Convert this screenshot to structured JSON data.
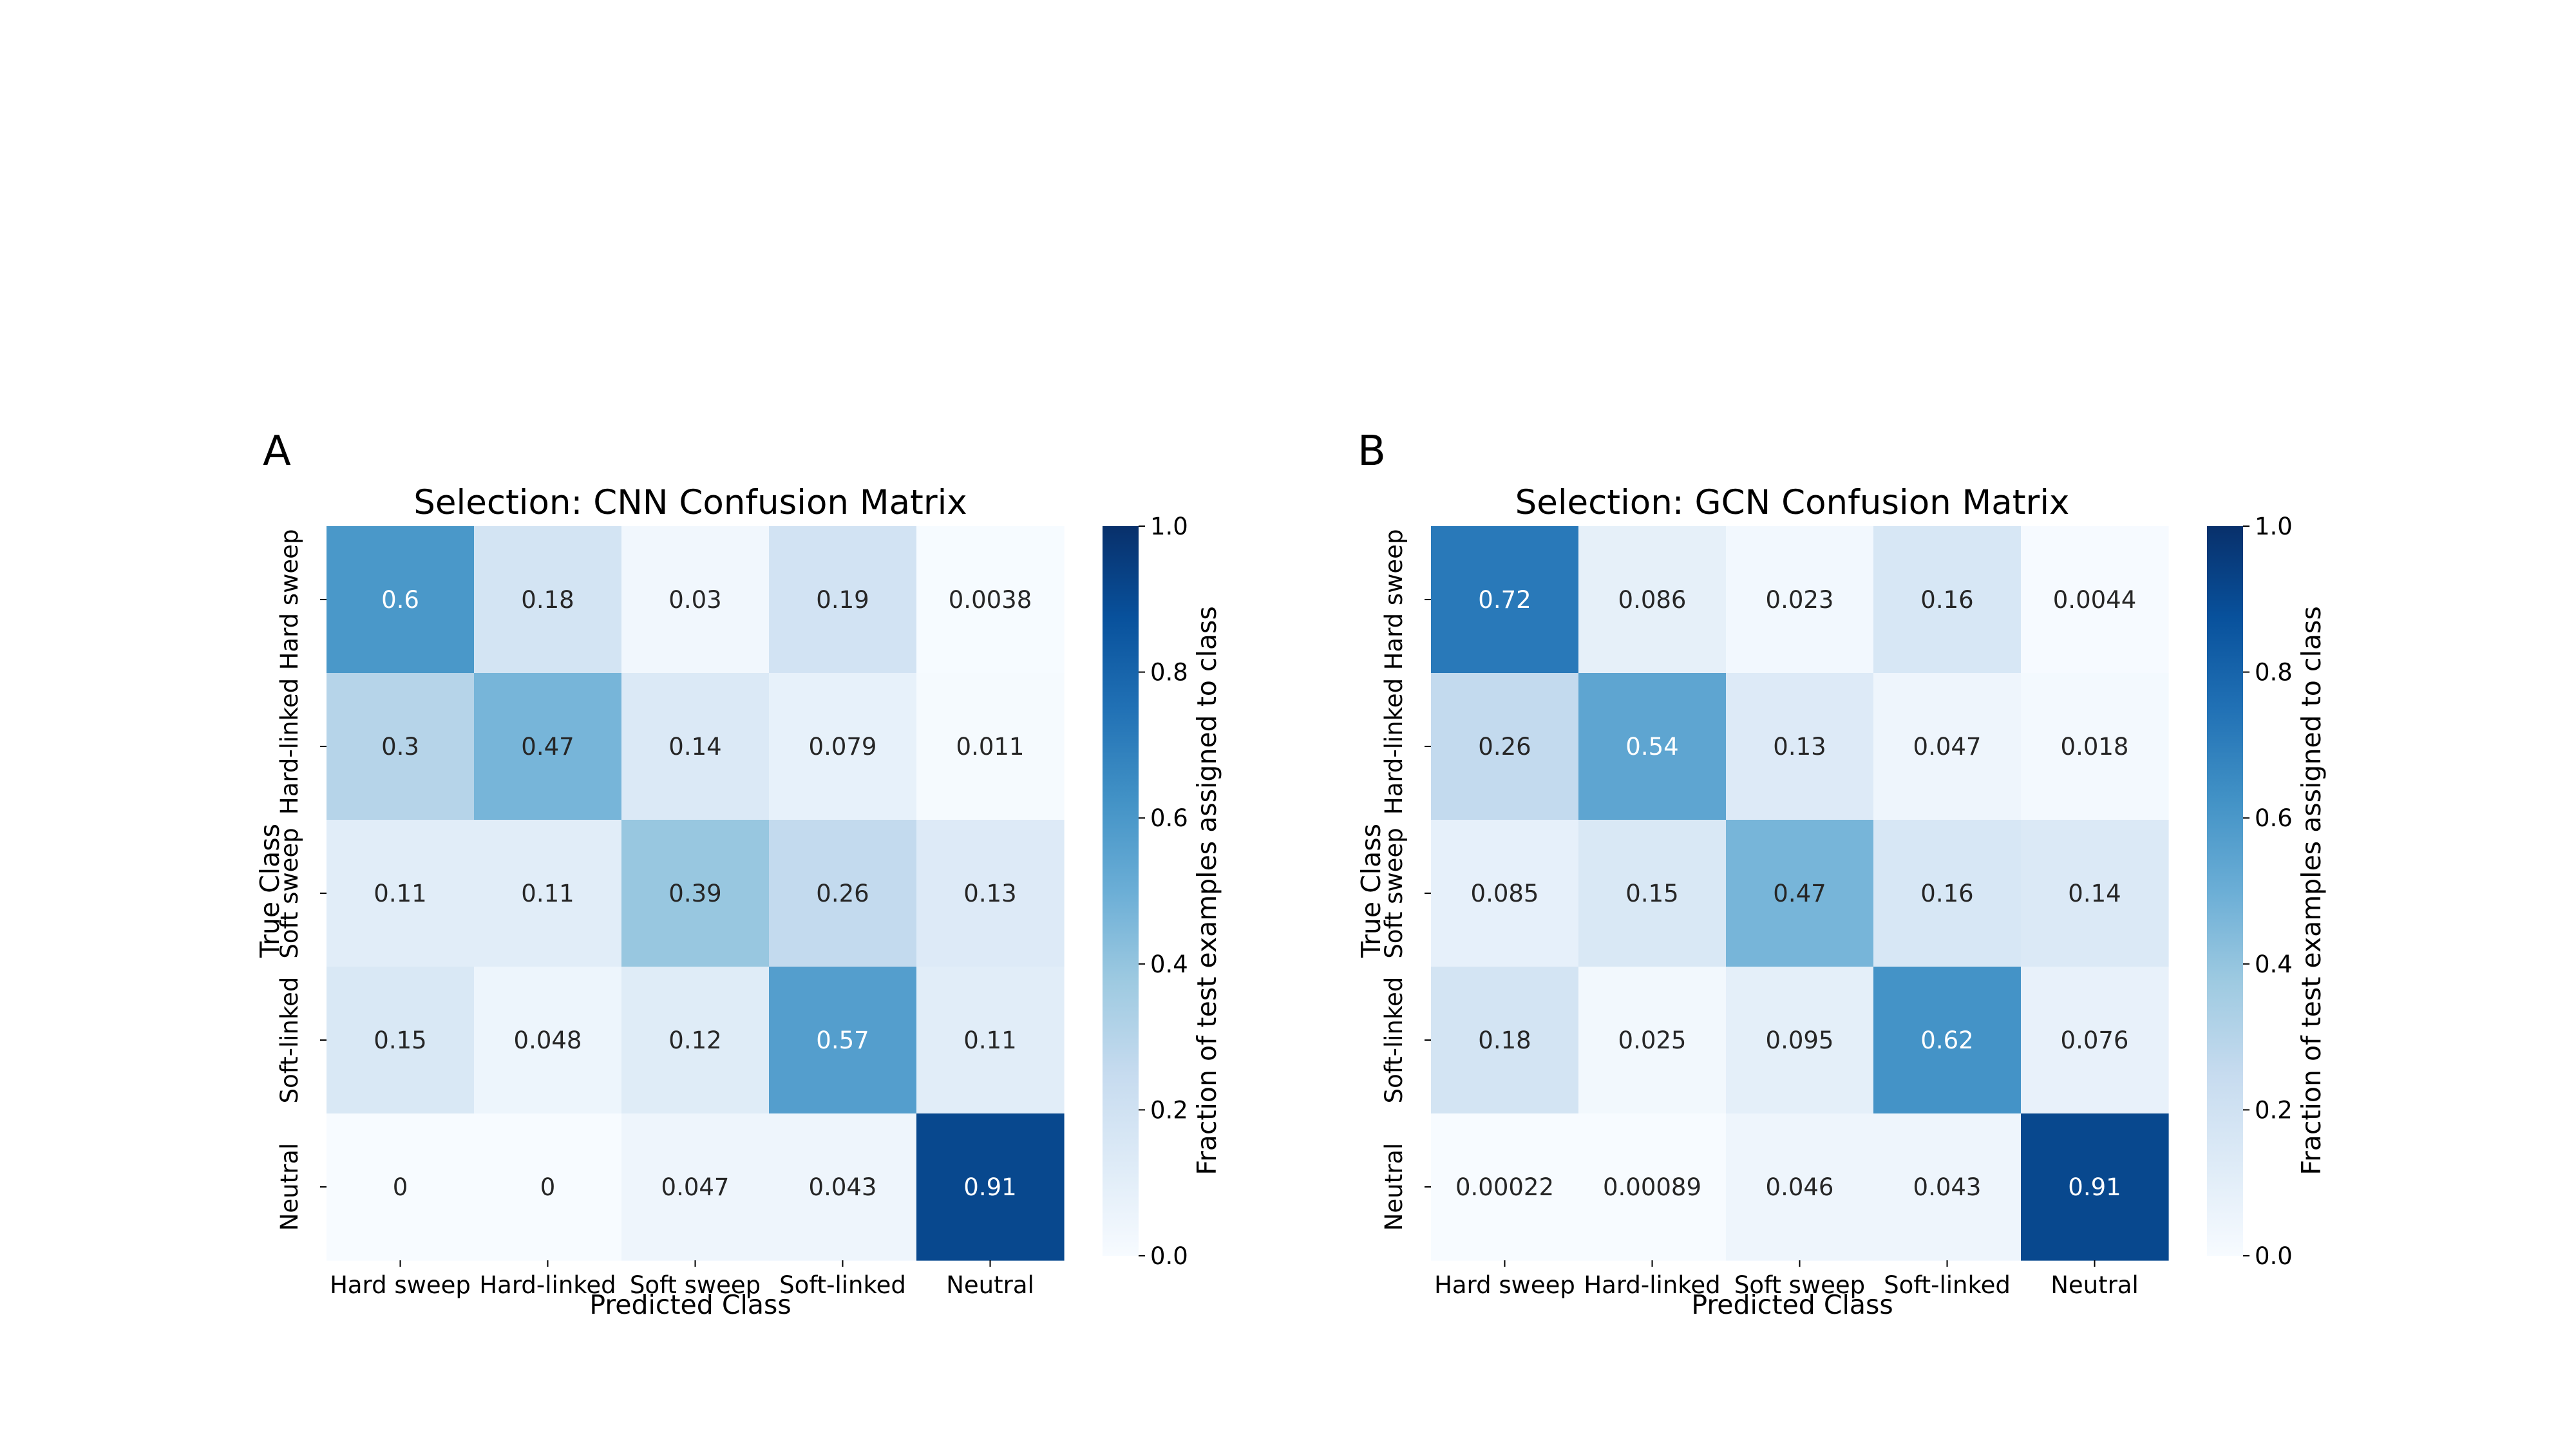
{
  "figure": {
    "background": "#ffffff",
    "panels": [
      {
        "letter": "A"
      },
      {
        "letter": "B"
      }
    ]
  },
  "chart_data": [
    {
      "type": "heatmap",
      "panel_letter": "A",
      "title": "Selection: CNN Confusion Matrix",
      "xlabel": "Predicted Class",
      "ylabel": "True Class",
      "x_categories": [
        "Hard sweep",
        "Hard-linked",
        "Soft sweep",
        "Soft-linked",
        "Neutral"
      ],
      "y_categories": [
        "Hard sweep",
        "Hard-linked",
        "Soft sweep",
        "Soft-linked",
        "Neutral"
      ],
      "values": [
        [
          0.6,
          0.18,
          0.03,
          0.19,
          0.0038
        ],
        [
          0.3,
          0.47,
          0.14,
          0.079,
          0.011
        ],
        [
          0.11,
          0.11,
          0.39,
          0.26,
          0.13
        ],
        [
          0.15,
          0.048,
          0.12,
          0.57,
          0.11
        ],
        [
          0,
          0,
          0.047,
          0.043,
          0.91
        ]
      ],
      "cell_labels": [
        [
          "0.6",
          "0.18",
          "0.03",
          "0.19",
          "0.0038"
        ],
        [
          "0.3",
          "0.47",
          "0.14",
          "0.079",
          "0.011"
        ],
        [
          "0.11",
          "0.11",
          "0.39",
          "0.26",
          "0.13"
        ],
        [
          "0.15",
          "0.048",
          "0.12",
          "0.57",
          "0.11"
        ],
        [
          "0",
          "0",
          "0.047",
          "0.043",
          "0.91"
        ]
      ],
      "colorbar": {
        "label": "Fraction of test examples assigned to class",
        "range": [
          0,
          1
        ],
        "ticks": [
          "0.0",
          "0.2",
          "0.4",
          "0.6",
          "0.8",
          "1.0"
        ],
        "colormap": "Blues"
      }
    },
    {
      "type": "heatmap",
      "panel_letter": "B",
      "title": "Selection: GCN Confusion Matrix",
      "xlabel": "Predicted Class",
      "ylabel": "True Class",
      "x_categories": [
        "Hard sweep",
        "Hard-linked",
        "Soft sweep",
        "Soft-linked",
        "Neutral"
      ],
      "y_categories": [
        "Hard sweep",
        "Hard-linked",
        "Soft sweep",
        "Soft-linked",
        "Neutral"
      ],
      "values": [
        [
          0.72,
          0.086,
          0.023,
          0.16,
          0.0044
        ],
        [
          0.26,
          0.54,
          0.13,
          0.047,
          0.018
        ],
        [
          0.085,
          0.15,
          0.47,
          0.16,
          0.14
        ],
        [
          0.18,
          0.025,
          0.095,
          0.62,
          0.076
        ],
        [
          0.00022,
          0.00089,
          0.046,
          0.043,
          0.91
        ]
      ],
      "cell_labels": [
        [
          "0.72",
          "0.086",
          "0.023",
          "0.16",
          "0.0044"
        ],
        [
          "0.26",
          "0.54",
          "0.13",
          "0.047",
          "0.018"
        ],
        [
          "0.085",
          "0.15",
          "0.47",
          "0.16",
          "0.14"
        ],
        [
          "0.18",
          "0.025",
          "0.095",
          "0.62",
          "0.076"
        ],
        [
          "0.00022",
          "0.00089",
          "0.046",
          "0.043",
          "0.91"
        ]
      ],
      "colorbar": {
        "label": "Fraction of test examples assigned to class",
        "range": [
          0,
          1
        ],
        "ticks": [
          "0.0",
          "0.2",
          "0.4",
          "0.6",
          "0.8",
          "1.0"
        ],
        "colormap": "Blues"
      }
    }
  ]
}
